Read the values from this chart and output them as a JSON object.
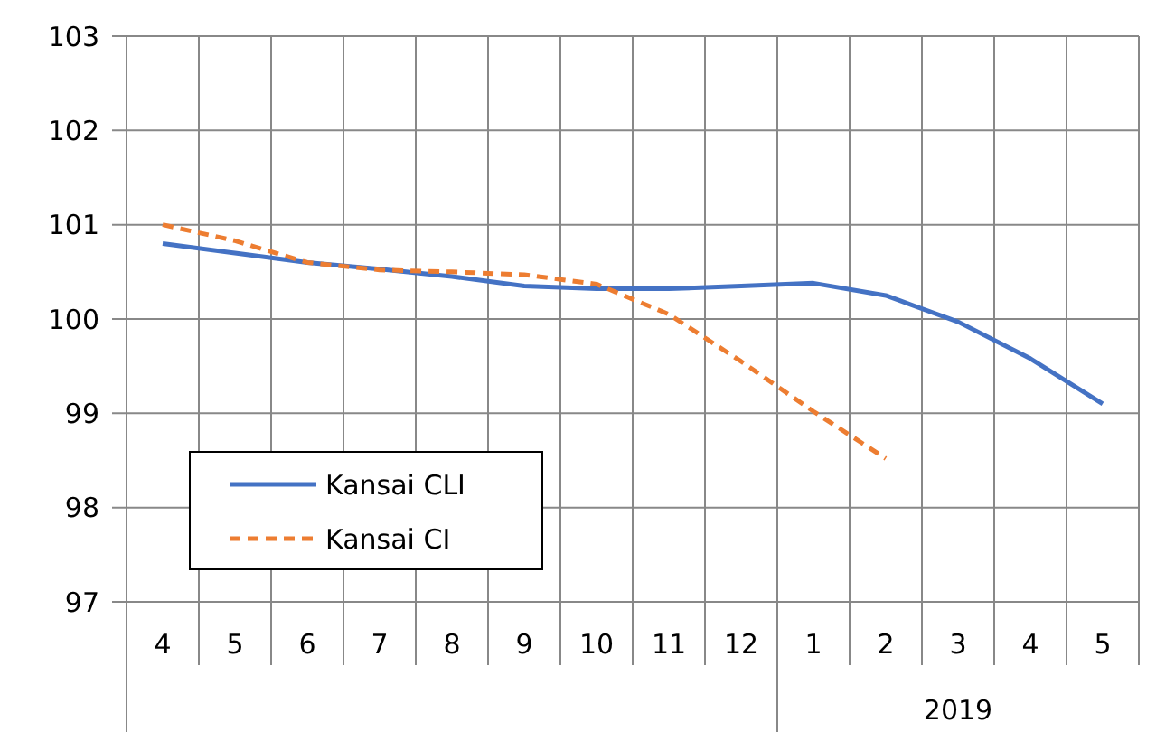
{
  "chart_data": {
    "type": "line",
    "categories": [
      "4",
      "5",
      "6",
      "7",
      "8",
      "9",
      "10",
      "11",
      "12",
      "1",
      "2",
      "3",
      "4",
      "5"
    ],
    "series": [
      {
        "name": "Kansai CLI",
        "color": "#4472c4",
        "line_style": "solid",
        "values": [
          100.8,
          100.7,
          100.6,
          100.53,
          100.45,
          100.35,
          100.32,
          100.32,
          100.35,
          100.38,
          100.25,
          99.97,
          99.58,
          99.1
        ]
      },
      {
        "name": "Kansai CI",
        "color": "#ed7d31",
        "line_style": "dashed",
        "values": [
          101.0,
          100.83,
          100.6,
          100.52,
          100.5,
          100.47,
          100.37,
          100.05,
          99.55,
          99.02,
          98.52,
          null,
          null,
          null
        ]
      }
    ],
    "ylim": [
      97,
      103
    ],
    "yticks": [
      97,
      98,
      99,
      100,
      101,
      102,
      103
    ],
    "grid": true,
    "legend": "bottom left",
    "annotations": [
      "2019"
    ]
  }
}
